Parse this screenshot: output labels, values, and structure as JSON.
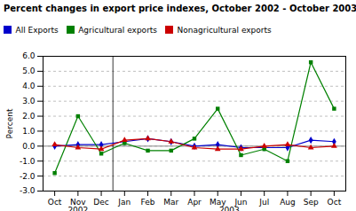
{
  "chart_data": {
    "type": "line",
    "title": "Percent changes in export price indexes, October 2002 - October 2003",
    "y_label": "Percent",
    "categories": [
      "Oct",
      "Nov",
      "Dec",
      "Jan",
      "Feb",
      "Mar",
      "Apr",
      "May",
      "Jun",
      "Jul",
      "Aug",
      "Sep",
      "Oct"
    ],
    "series": [
      {
        "name": "All Exports",
        "color": "#0000cc",
        "marker": "diamond",
        "values": [
          0.0,
          0.1,
          0.1,
          0.3,
          0.5,
          0.3,
          0.0,
          0.1,
          -0.1,
          -0.1,
          -0.1,
          0.4,
          0.3
        ]
      },
      {
        "name": "Agricultural exports",
        "color": "#008000",
        "marker": "square",
        "values": [
          -1.8,
          2.0,
          -0.5,
          0.2,
          -0.3,
          -0.3,
          0.5,
          2.5,
          -0.6,
          -0.2,
          -1.0,
          5.6,
          2.5
        ]
      },
      {
        "name": "Nonagricultural exports",
        "color": "#cc0000",
        "marker": "triangle",
        "values": [
          0.1,
          -0.1,
          -0.2,
          0.4,
          0.5,
          0.3,
          -0.1,
          -0.2,
          -0.2,
          0.0,
          0.1,
          -0.1,
          0.0
        ]
      }
    ],
    "ylim": [
      -3.0,
      6.0
    ],
    "yticks": [
      {
        "value": -3.0,
        "label": "-3.0"
      },
      {
        "value": -2.0,
        "label": "-2.0"
      },
      {
        "value": -1.0,
        "label": "-1.0"
      },
      {
        "value": 0.0,
        "label": "0.0"
      },
      {
        "value": 1.0,
        "label": "1.0"
      },
      {
        "value": 2.0,
        "label": "2.0"
      },
      {
        "value": 3.0,
        "label": "3.0"
      },
      {
        "value": 4.0,
        "label": "4.0"
      },
      {
        "value": 5.0,
        "label": "5.0"
      },
      {
        "value": 6.0,
        "label": "6.0"
      }
    ],
    "grid": true,
    "annotations": [
      {
        "text": "2002",
        "x": 1.0
      },
      {
        "text": "2003",
        "x": 7.5
      }
    ]
  }
}
